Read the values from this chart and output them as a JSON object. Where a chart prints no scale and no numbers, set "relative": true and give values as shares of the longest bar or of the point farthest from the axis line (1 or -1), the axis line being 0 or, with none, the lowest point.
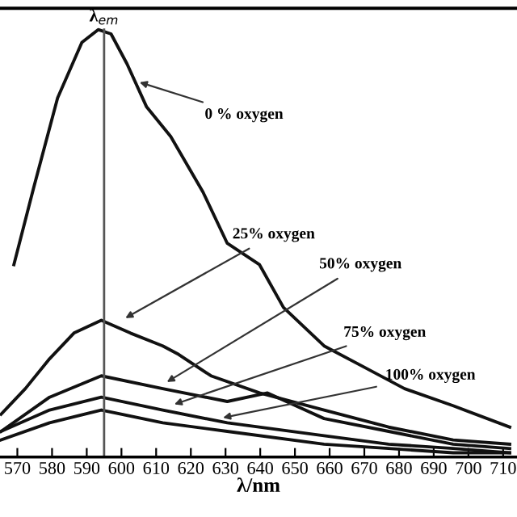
{
  "chart_data": {
    "type": "line",
    "relative": true,
    "xlabel": "λ/nm",
    "xlim": [
      565,
      714
    ],
    "xticks": [
      570,
      580,
      590,
      600,
      610,
      620,
      630,
      640,
      650,
      660,
      670,
      680,
      690,
      700,
      710
    ],
    "series": [
      {
        "color": "#111111",
        "x": [
          569,
          574.7,
          581.6,
          588.6,
          593.3,
          597,
          601.6,
          607.2,
          614.2,
          623.5,
          630.5,
          639.8,
          646.7,
          658.4,
          670,
          681.6,
          695.6,
          711.9
        ],
        "values": [
          0.45,
          0.63,
          0.84,
          0.97,
          1,
          0.99,
          0.92,
          0.82,
          0.75,
          0.62,
          0.5,
          0.45,
          0.35,
          0.26,
          0.21,
          0.16,
          0.12,
          0.07
        ]
      },
      {
        "color": "#111111",
        "x": [
          565.3,
          572.3,
          579.3,
          586.3,
          594.2,
          602.6,
          611.9,
          616.5,
          625.8,
          639.8,
          658.4,
          677,
          695.6,
          711.9
        ],
        "values": [
          0.1,
          0.16,
          0.23,
          0.29,
          0.32,
          0.29,
          0.26,
          0.24,
          0.19,
          0.15,
          0.11,
          0.07,
          0.04,
          0.03
        ]
      },
      {
        "color": "#111111",
        "x": [
          565.3,
          579.3,
          594.2,
          611.9,
          630.5,
          642.1,
          658.4,
          677,
          695.6,
          711.9
        ],
        "values": [
          0.06,
          0.14,
          0.19,
          0.16,
          0.13,
          0.15,
          0.09,
          0.06,
          0.03,
          0.02
        ]
      },
      {
        "color": "#111111",
        "x": [
          565.3,
          579.3,
          594.2,
          611.9,
          630.5,
          658.4,
          677,
          695.6,
          711.9
        ],
        "values": [
          0.06,
          0.11,
          0.14,
          0.11,
          0.08,
          0.05,
          0.03,
          0.02,
          0.01
        ]
      },
      {
        "color": "#111111",
        "x": [
          565.3,
          579.3,
          594.2,
          611.9,
          630.5,
          658.4,
          677,
          695.6,
          711.9
        ],
        "values": [
          0.04,
          0.08,
          0.11,
          0.08,
          0.06,
          0.03,
          0.02,
          0.01,
          0.01
        ]
      }
    ],
    "ref_lines": [
      {
        "axis": "x",
        "value": 595,
        "label": "λ$_{em}$",
        "color": "#555555"
      }
    ],
    "annotations": [
      {
        "text": "0 % oxygen",
        "x": 604,
        "y": 0.88
      },
      {
        "text": "25% oxygen",
        "x": 600,
        "y": 0.32
      },
      {
        "text": "50% oxygen",
        "x": 612,
        "y": 0.17
      },
      {
        "text": "75% oxygen",
        "x": 614,
        "y": 0.12
      },
      {
        "text": "100% oxygen",
        "x": 628,
        "y": 0.09
      }
    ],
    "grid": false,
    "marker": "none",
    "line_style": "solid"
  }
}
